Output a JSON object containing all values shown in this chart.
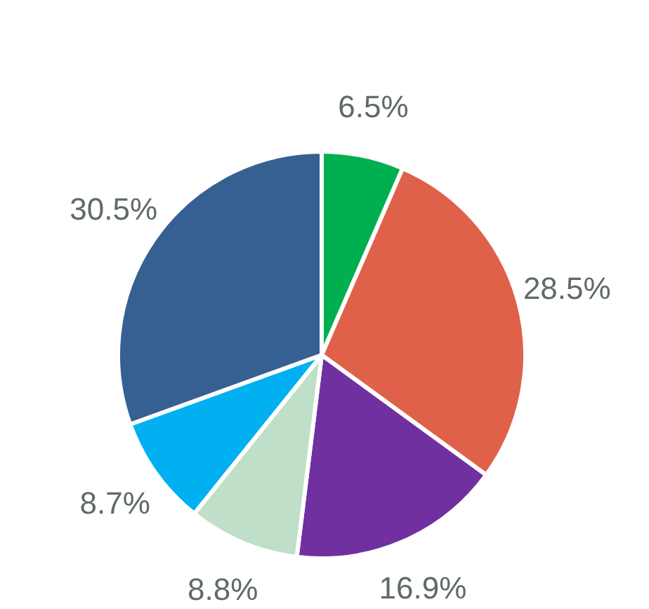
{
  "chart_data": {
    "type": "pie",
    "categories": [
      null,
      null,
      null,
      null,
      null,
      null
    ],
    "values": [
      6.5,
      28.5,
      16.9,
      8.8,
      8.7,
      30.5
    ],
    "colors": [
      "#00b050",
      "#e0614a",
      "#7030a0",
      "#bfdfc8",
      "#00b0f0",
      "#376092"
    ],
    "value_labels": [
      "6.5%",
      "28.5%",
      "16.9%",
      "8.8%",
      "8.7%",
      "30.5%"
    ]
  }
}
